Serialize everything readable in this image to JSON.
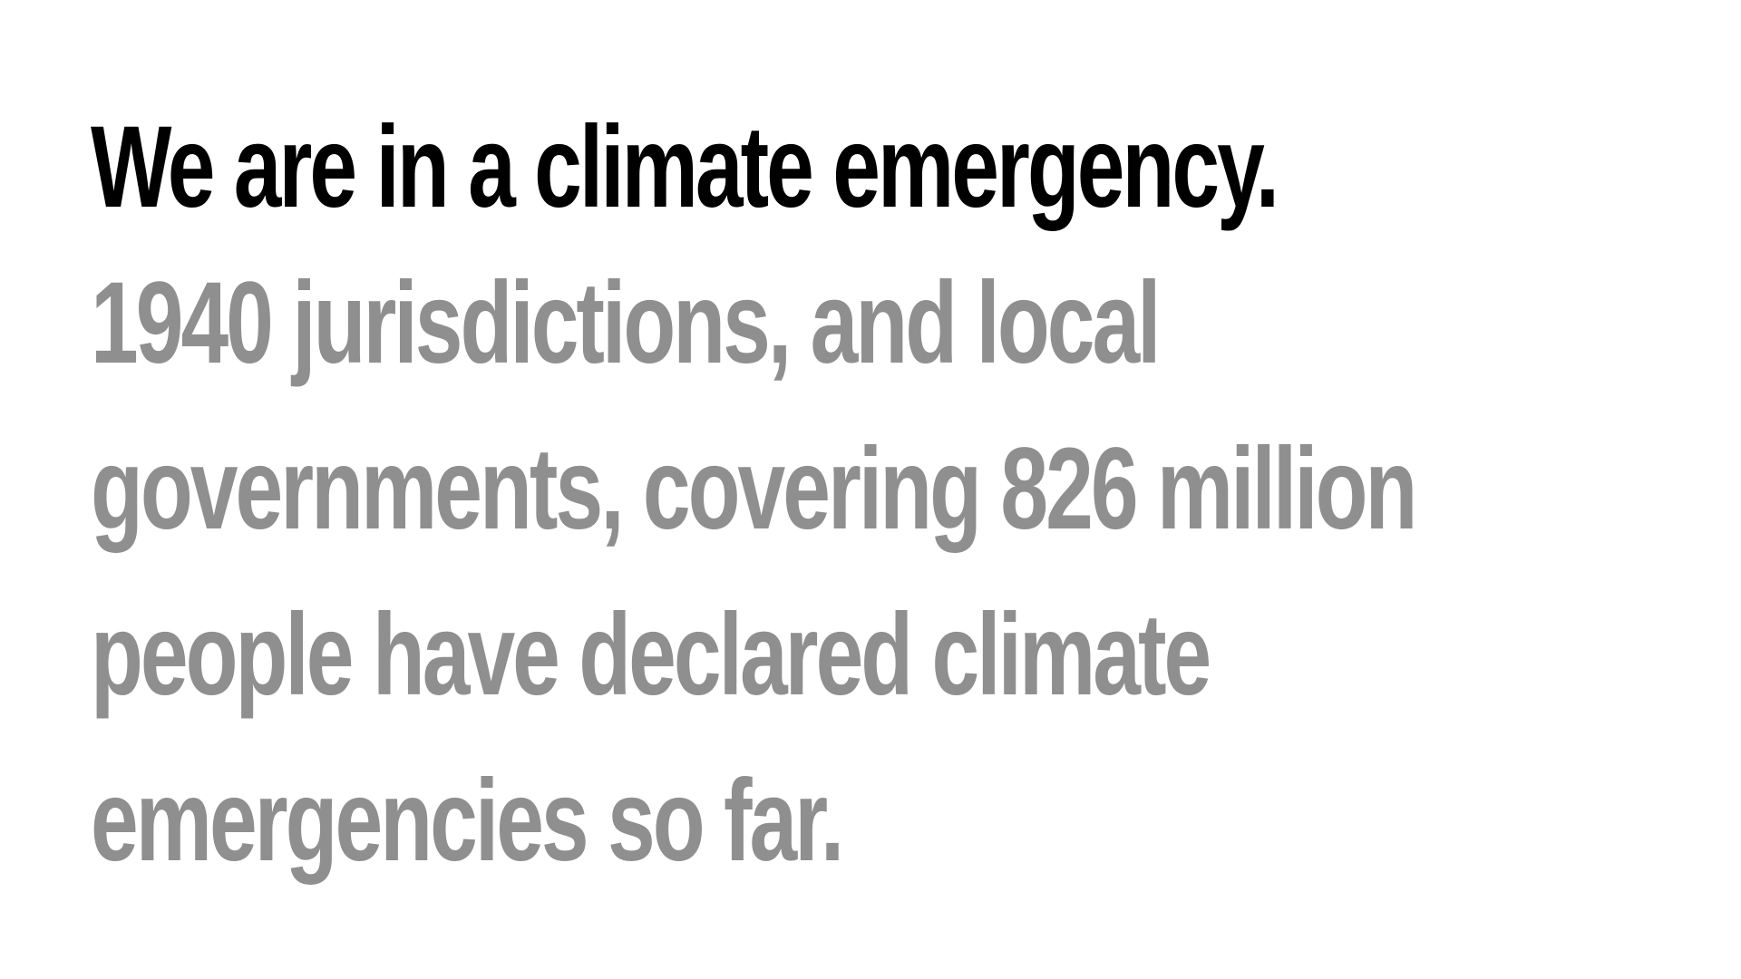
{
  "headline": "We are in a climate emergency.",
  "body_lines": [
    "1940 jurisdictions, and local",
    "governments, covering 826 million",
    "people have declared climate",
    "emergencies so far."
  ],
  "colors": {
    "background": "#ffffff",
    "headline": "#000000",
    "body": "#8f8f8f"
  }
}
